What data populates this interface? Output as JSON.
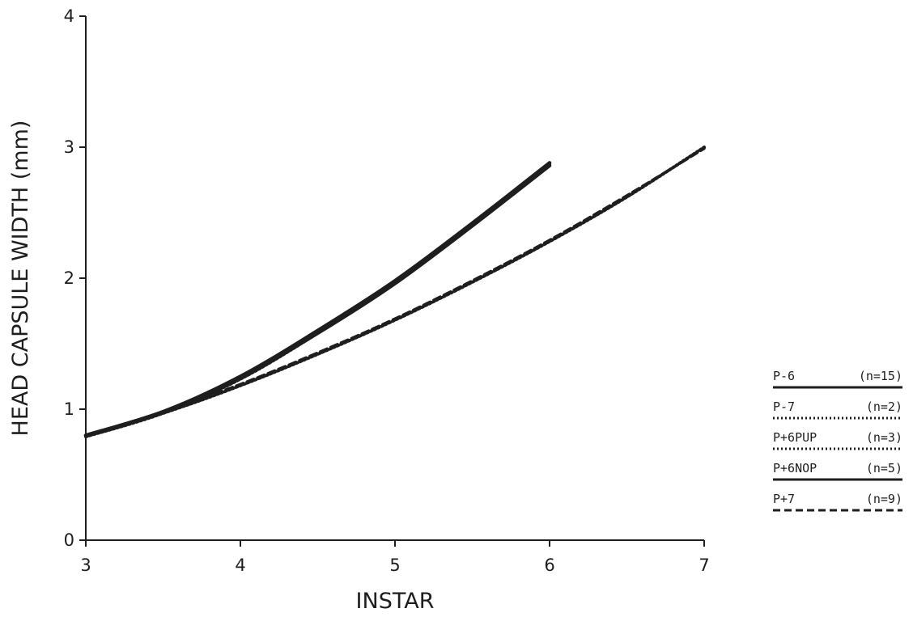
{
  "chart_data": {
    "type": "line",
    "title": "",
    "xlabel": "INSTAR",
    "ylabel": "HEAD CAPSULE WIDTH (mm)",
    "xlim": [
      3,
      7
    ],
    "ylim": [
      0,
      4
    ],
    "xticks": [
      "3",
      "4",
      "5",
      "6",
      "7"
    ],
    "yticks": [
      "0",
      "1",
      "2",
      "3",
      "4"
    ],
    "grid": false,
    "legend_position": "right",
    "legend": [
      {
        "label": "P-6",
        "n": "(n=15)",
        "style": "solid"
      },
      {
        "label": "P-7",
        "n": "(n=2)",
        "style": "dotted"
      },
      {
        "label": "P+6PUP",
        "n": "(n=3)",
        "style": "dotted"
      },
      {
        "label": "P+6NOP",
        "n": "(n=5)",
        "style": "solid"
      },
      {
        "label": "P+7",
        "n": "(n=9)",
        "style": "dashed"
      }
    ],
    "series": [
      {
        "name": "P-6",
        "style": "solid",
        "x": [
          3,
          3.5,
          4,
          4.5,
          5,
          5.5,
          6
        ],
        "y": [
          0.8,
          0.98,
          1.25,
          1.6,
          1.98,
          2.42,
          2.88
        ]
      },
      {
        "name": "P+6NOP",
        "style": "solid",
        "x": [
          3,
          3.5,
          4,
          4.5,
          5,
          5.5,
          6
        ],
        "y": [
          0.8,
          0.98,
          1.24,
          1.58,
          1.96,
          2.4,
          2.86
        ]
      },
      {
        "name": "P+6PUP",
        "style": "dotted",
        "x": [
          3,
          3.5,
          4,
          4.5,
          5,
          5.5,
          6
        ],
        "y": [
          0.79,
          0.97,
          1.23,
          1.58,
          1.97,
          2.4,
          2.87
        ]
      },
      {
        "name": "P-7",
        "style": "dotted",
        "x": [
          3,
          3.5,
          4,
          4.5,
          5,
          5.5,
          6,
          6.5,
          7
        ],
        "y": [
          0.8,
          0.97,
          1.18,
          1.42,
          1.68,
          1.97,
          2.28,
          2.62,
          3.0
        ]
      },
      {
        "name": "P+7",
        "style": "dashed",
        "x": [
          3,
          3.5,
          4,
          4.5,
          5,
          5.5,
          6,
          6.5,
          7
        ],
        "y": [
          0.8,
          0.98,
          1.19,
          1.43,
          1.69,
          1.98,
          2.29,
          2.63,
          2.99
        ]
      }
    ]
  }
}
